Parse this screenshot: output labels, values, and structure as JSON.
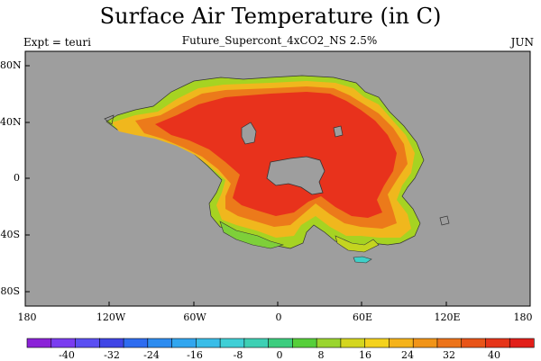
{
  "map": {
    "title": "Surface Air Temperature (in C)",
    "subtitle": "Future_Supercont_4xCO2_NS 2.5%",
    "left_label": "Expt = teuri",
    "right_label": "JUN",
    "ocean_color": "#9e9e9e",
    "land_hot_color": "#e8321c",
    "land_warm_color": "#ec7a1a",
    "land_mild_color": "#f0b71d",
    "land_cool_color": "#a6d322",
    "y_ticks": [
      "80N",
      "40N",
      "0",
      "40S",
      "80S"
    ],
    "x_ticks": [
      "180",
      "120W",
      "60W",
      "0",
      "60E",
      "120E",
      "180"
    ]
  },
  "colorbar": {
    "ticks": [
      "-40",
      "-32",
      "-24",
      "-16",
      "-8",
      "0",
      "8",
      "16",
      "24",
      "32",
      "40"
    ],
    "colors": [
      "#8b22d8",
      "#7a3cf0",
      "#5b4ff2",
      "#3f45e6",
      "#2e6cf0",
      "#2d8cf0",
      "#31a6ef",
      "#39bde8",
      "#3fcfd6",
      "#3ed0b4",
      "#3ccd7e",
      "#56cf3a",
      "#9ad52e",
      "#d4d61f",
      "#f4d21d",
      "#f5b31b",
      "#f19418",
      "#ec731a",
      "#e85418",
      "#e63519",
      "#e21f1a"
    ]
  }
}
